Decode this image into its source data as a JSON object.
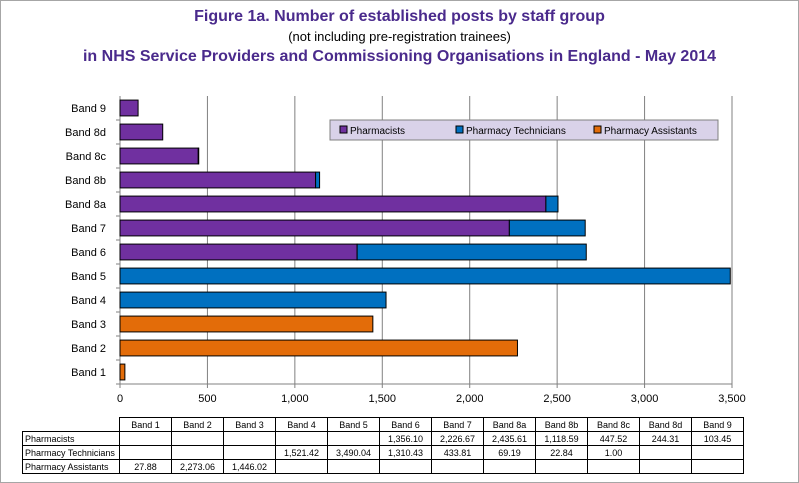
{
  "titles": {
    "line1": "Figure 1a.  Number of established posts by staff group",
    "line2": "(not including pre-registration trainees)",
    "line3": "in NHS Service Providers and Commissioning Organisations in England - May 2014"
  },
  "chart_data": {
    "type": "bar",
    "orientation": "horizontal",
    "stacked": true,
    "categories": [
      "Band 1",
      "Band 2",
      "Band 3",
      "Band 4",
      "Band 5",
      "Band 6",
      "Band 7",
      "Band 8a",
      "Band 8b",
      "Band 8c",
      "Band 8d",
      "Band 9"
    ],
    "series": [
      {
        "name": "Pharmacists",
        "color": "#7030a0",
        "values": [
          null,
          null,
          null,
          null,
          null,
          1356.1,
          2226.67,
          2435.61,
          1118.59,
          447.52,
          244.31,
          103.45
        ],
        "labels": [
          "",
          "",
          "",
          "",
          "",
          "1,356.10",
          "2,226.67",
          "2,435.61",
          "1,118.59",
          "447.52",
          "244.31",
          "103.45"
        ]
      },
      {
        "name": "Pharmacy Technicians",
        "color": "#0070c0",
        "values": [
          null,
          null,
          null,
          1521.42,
          3490.04,
          1310.43,
          433.81,
          69.19,
          22.84,
          1.0,
          null,
          null
        ],
        "labels": [
          "",
          "",
          "",
          "1,521.42",
          "3,490.04",
          "1,310.43",
          "433.81",
          "69.19",
          "22.84",
          "1.00",
          "",
          ""
        ]
      },
      {
        "name": "Pharmacy Assistants",
        "color": "#e36c09",
        "values": [
          27.88,
          2273.06,
          1446.02,
          null,
          null,
          null,
          null,
          null,
          null,
          null,
          null,
          null
        ],
        "labels": [
          "27.88",
          "2,273.06",
          "1,446.02",
          "",
          "",
          "",
          "",
          "",
          "",
          "",
          "",
          ""
        ]
      }
    ],
    "xlim": [
      0,
      3500
    ],
    "xticks": [
      "0",
      "500",
      "1,000",
      "1,500",
      "2,000",
      "2,500",
      "3,000",
      "3,500"
    ],
    "grid": true,
    "legend": "top-right, inside plot",
    "has_data_table": true
  }
}
